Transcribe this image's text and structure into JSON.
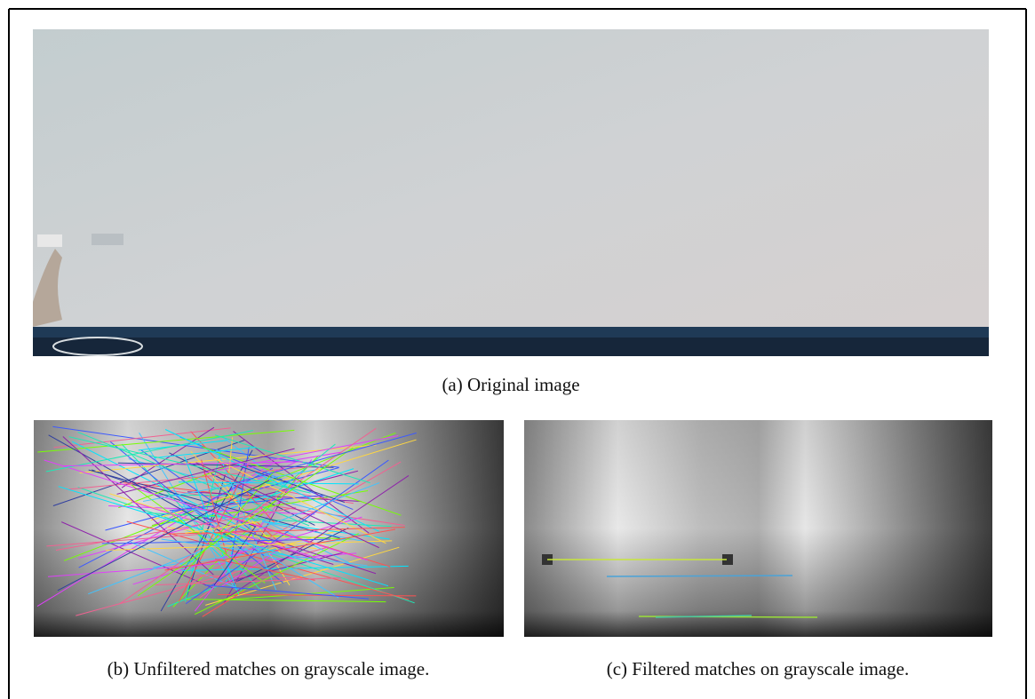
{
  "figure": {
    "subfigures": [
      {
        "caption": "(a) Original image"
      },
      {
        "caption": "(b) Unfiltered matches on grayscale image."
      },
      {
        "caption": "(c) Filtered matches on grayscale image."
      }
    ]
  }
}
